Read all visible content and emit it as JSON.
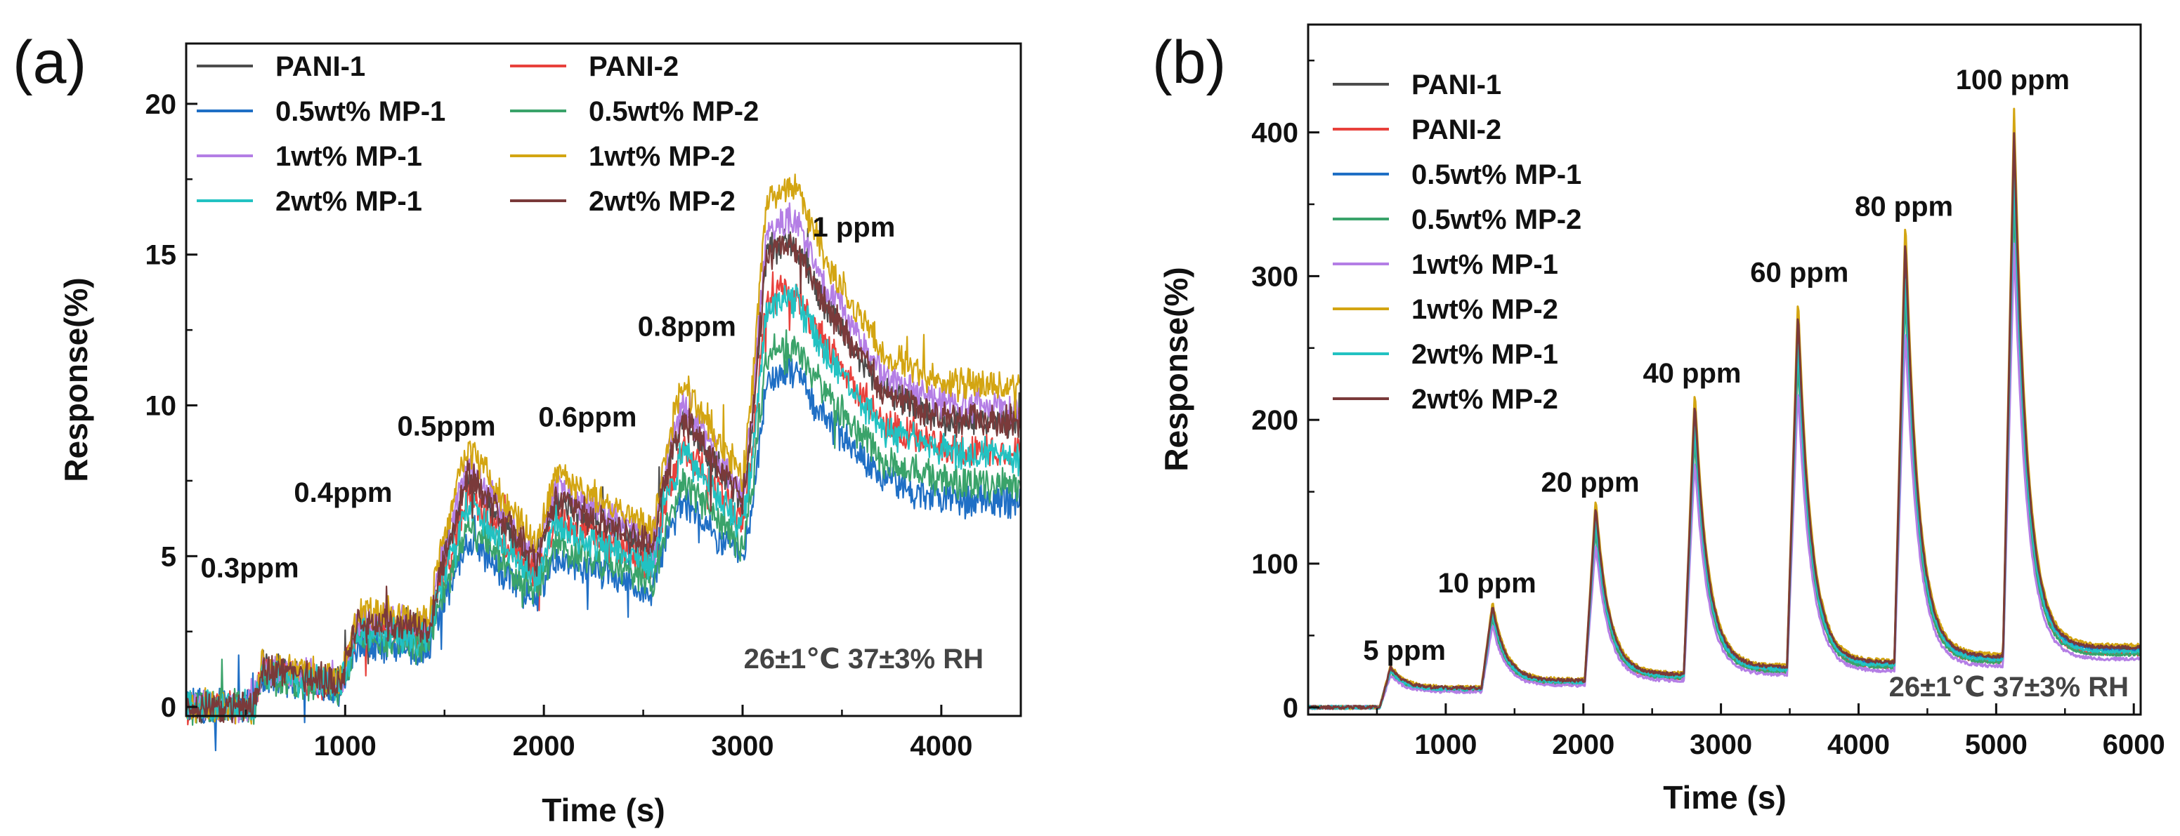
{
  "chart_data": [
    {
      "type": "line",
      "panel_label": "(a)",
      "xlabel": "Time (s)",
      "ylabel": "Response(%)",
      "xlim": [
        200,
        4400
      ],
      "ylim": [
        -0.3,
        22
      ],
      "xticks": [
        1000,
        2000,
        3000,
        4000
      ],
      "yticks": [
        0,
        5,
        10,
        15,
        20
      ],
      "condition": "26±1℃   37±3% RH",
      "legend_columns": 2,
      "annotations": [
        {
          "text": "0.3ppm",
          "x": 520,
          "y": 4.3
        },
        {
          "text": "0.4ppm",
          "x": 990,
          "y": 6.8
        },
        {
          "text": "0.5ppm",
          "x": 1510,
          "y": 9.0
        },
        {
          "text": "0.6ppm",
          "x": 2220,
          "y": 9.3
        },
        {
          "text": "0.8ppm",
          "x": 2720,
          "y": 12.3
        },
        {
          "text": "1 ppm",
          "x": 3560,
          "y": 15.6
        }
      ],
      "profile": {
        "x": [
          200,
          540,
          580,
          820,
          980,
          1060,
          1300,
          1420,
          1480,
          1620,
          1780,
          1960,
          2060,
          2200,
          2550,
          2620,
          2700,
          2850,
          3000,
          3050,
          3120,
          3220,
          3280,
          3400,
          3700,
          4000,
          4400
        ],
        "base": [
          0,
          0,
          1.3,
          1.0,
          0.8,
          2.8,
          2.7,
          2.5,
          4.6,
          7.7,
          6.3,
          4.8,
          6.9,
          6.4,
          5.3,
          7.8,
          9.6,
          8.2,
          6.8,
          9.5,
          15.0,
          15.4,
          15.2,
          13.5,
          10.5,
          9.6,
          9.4
        ]
      },
      "series": [
        {
          "name": "PANI-1",
          "color": "#4d4d4d",
          "scale": 1.0
        },
        {
          "name": "PANI-2",
          "color": "#e8413c",
          "scale": 0.9
        },
        {
          "name": "0.5wt% MP-1",
          "color": "#1f6fc5",
          "scale": 0.72
        },
        {
          "name": "0.5wt% MP-2",
          "color": "#3aa36a",
          "scale": 0.78
        },
        {
          "name": "1wt% MP-1",
          "color": "#b47ee5",
          "scale": 1.05
        },
        {
          "name": "1wt% MP-2",
          "color": "#d3a512",
          "scale": 1.12
        },
        {
          "name": "2wt% MP-1",
          "color": "#22c2c2",
          "scale": 0.88
        },
        {
          "name": "2wt% MP-2",
          "color": "#7a3a3a",
          "scale": 1.0
        }
      ]
    },
    {
      "type": "line",
      "panel_label": "(b)",
      "xlabel": "Time (s)",
      "ylabel": "Response(%)",
      "xlim": [
        0,
        6050
      ],
      "ylim": [
        -5,
        475
      ],
      "xticks": [
        1000,
        2000,
        3000,
        4000,
        5000,
        6000
      ],
      "yticks": [
        0,
        100,
        200,
        300,
        400
      ],
      "condition": "26±1℃   37±3% RH",
      "legend_columns": 1,
      "annotations": [
        {
          "text": "5 ppm",
          "x": 700,
          "y": 33
        },
        {
          "text": "10 ppm",
          "x": 1300,
          "y": 80
        },
        {
          "text": "20 ppm",
          "x": 2050,
          "y": 150
        },
        {
          "text": "40 ppm",
          "x": 2790,
          "y": 226
        },
        {
          "text": "60 ppm",
          "x": 3570,
          "y": 296
        },
        {
          "text": "80 ppm",
          "x": 4330,
          "y": 342
        },
        {
          "text": "100 ppm",
          "x": 5120,
          "y": 430
        }
      ],
      "pulses": [
        {
          "start": 520,
          "peak": 27,
          "recovered": 13
        },
        {
          "start": 1260,
          "peak": 68,
          "recovered": 18
        },
        {
          "start": 2010,
          "peak": 135,
          "recovered": 22
        },
        {
          "start": 2730,
          "peak": 205,
          "recovered": 27
        },
        {
          "start": 3480,
          "peak": 265,
          "recovered": 30
        },
        {
          "start": 4260,
          "peak": 315,
          "recovered": 34
        },
        {
          "start": 5050,
          "peak": 385,
          "recovered": 40
        }
      ],
      "series": [
        {
          "name": "PANI-1",
          "color": "#4d4d4d",
          "scale": 1.02
        },
        {
          "name": "PANI-2",
          "color": "#e8413c",
          "scale": 0.93
        },
        {
          "name": "0.5wt% MP-1",
          "color": "#1f6fc5",
          "scale": 1.0
        },
        {
          "name": "0.5wt% MP-2",
          "color": "#3aa36a",
          "scale": 0.92
        },
        {
          "name": "1wt% MP-1",
          "color": "#b47ee5",
          "scale": 0.84
        },
        {
          "name": "1wt% MP-2",
          "color": "#d3a512",
          "scale": 1.08
        },
        {
          "name": "2wt% MP-1",
          "color": "#22c2c2",
          "scale": 0.97
        },
        {
          "name": "2wt% MP-2",
          "color": "#7a3a3a",
          "scale": 1.04
        }
      ]
    }
  ]
}
